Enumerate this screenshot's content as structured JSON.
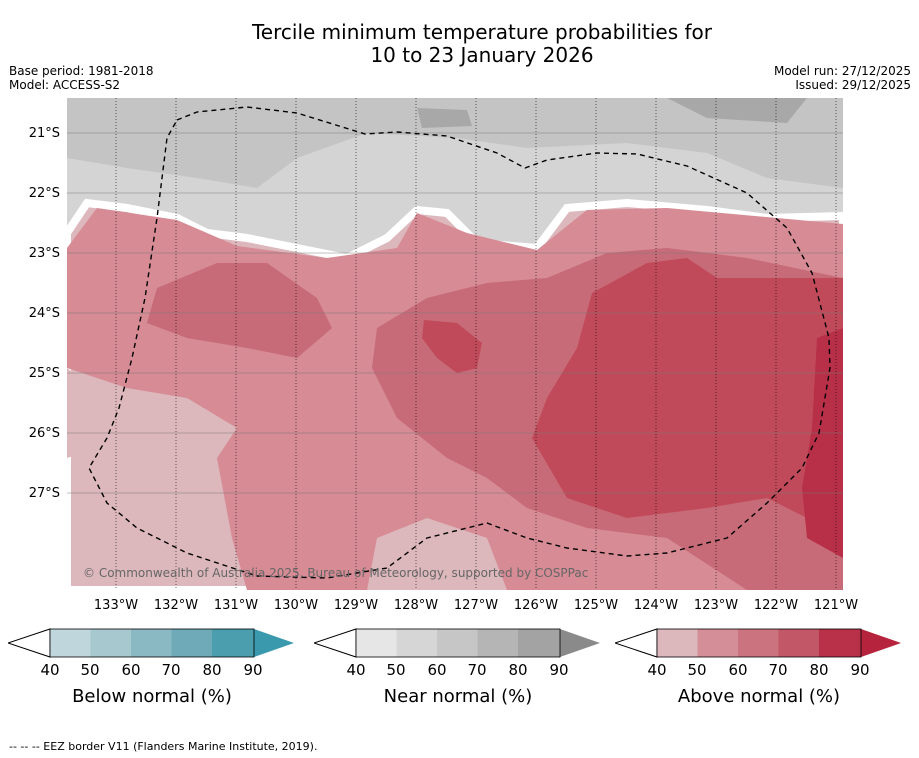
{
  "title": {
    "line1": "Tercile minimum temperature probabilities for",
    "line2": "10 to 23 January 2026"
  },
  "meta_left": {
    "base_period": "Base period: 1981-2018",
    "model": "Model: ACCESS-S2"
  },
  "meta_right": {
    "model_run": "Model run: 27/12/2025",
    "issued": "Issued: 29/12/2025"
  },
  "map": {
    "lat_labels": [
      "21°S",
      "22°S",
      "23°S",
      "24°S",
      "25°S",
      "26°S",
      "27°S"
    ],
    "lon_labels": [
      "133°W",
      "132°W",
      "131°W",
      "130°W",
      "129°W",
      "128°W",
      "127°W",
      "126°W",
      "125°W",
      "124°W",
      "123°W",
      "122°W",
      "121°W"
    ],
    "copyright": "© Commonwealth of Australia 2025, Bureau of Meteorology, supported by COSPPac",
    "colors": {
      "above_50": "#dcb7bc",
      "above_60": "#d68b95",
      "above_70": "#c86b78",
      "above_80": "#c04a5a",
      "above_90": "#b83048",
      "near_50": "#e3e3e3",
      "near_60": "#d4d4d4",
      "near_70": "#c4c4c4",
      "near_80": "#a8a8a8",
      "eez_border": "#000000"
    }
  },
  "colorbars": [
    {
      "title": "Below normal (%)",
      "ticks": [
        "40",
        "50",
        "60",
        "70",
        "80",
        "90"
      ],
      "colors": [
        "#bed6dc",
        "#a7c8cf",
        "#8ab8c3",
        "#6eaab8",
        "#4a9eae",
        "#3a99ac"
      ]
    },
    {
      "title": "Near normal (%)",
      "ticks": [
        "40",
        "50",
        "60",
        "70",
        "80",
        "90"
      ],
      "colors": [
        "#e6e6e6",
        "#d6d6d6",
        "#c6c6c6",
        "#b5b5b5",
        "#a3a3a3",
        "#8a8a8a"
      ]
    },
    {
      "title": "Above normal (%)",
      "ticks": [
        "40",
        "50",
        "60",
        "70",
        "80",
        "90"
      ],
      "colors": [
        "#dcb7bc",
        "#d48e98",
        "#cb7480",
        "#c25867",
        "#b93148",
        "#b5233c"
      ]
    }
  ],
  "footnote": "--  --  -- EEZ border V11 (Flanders Marine Institute, 2019)."
}
